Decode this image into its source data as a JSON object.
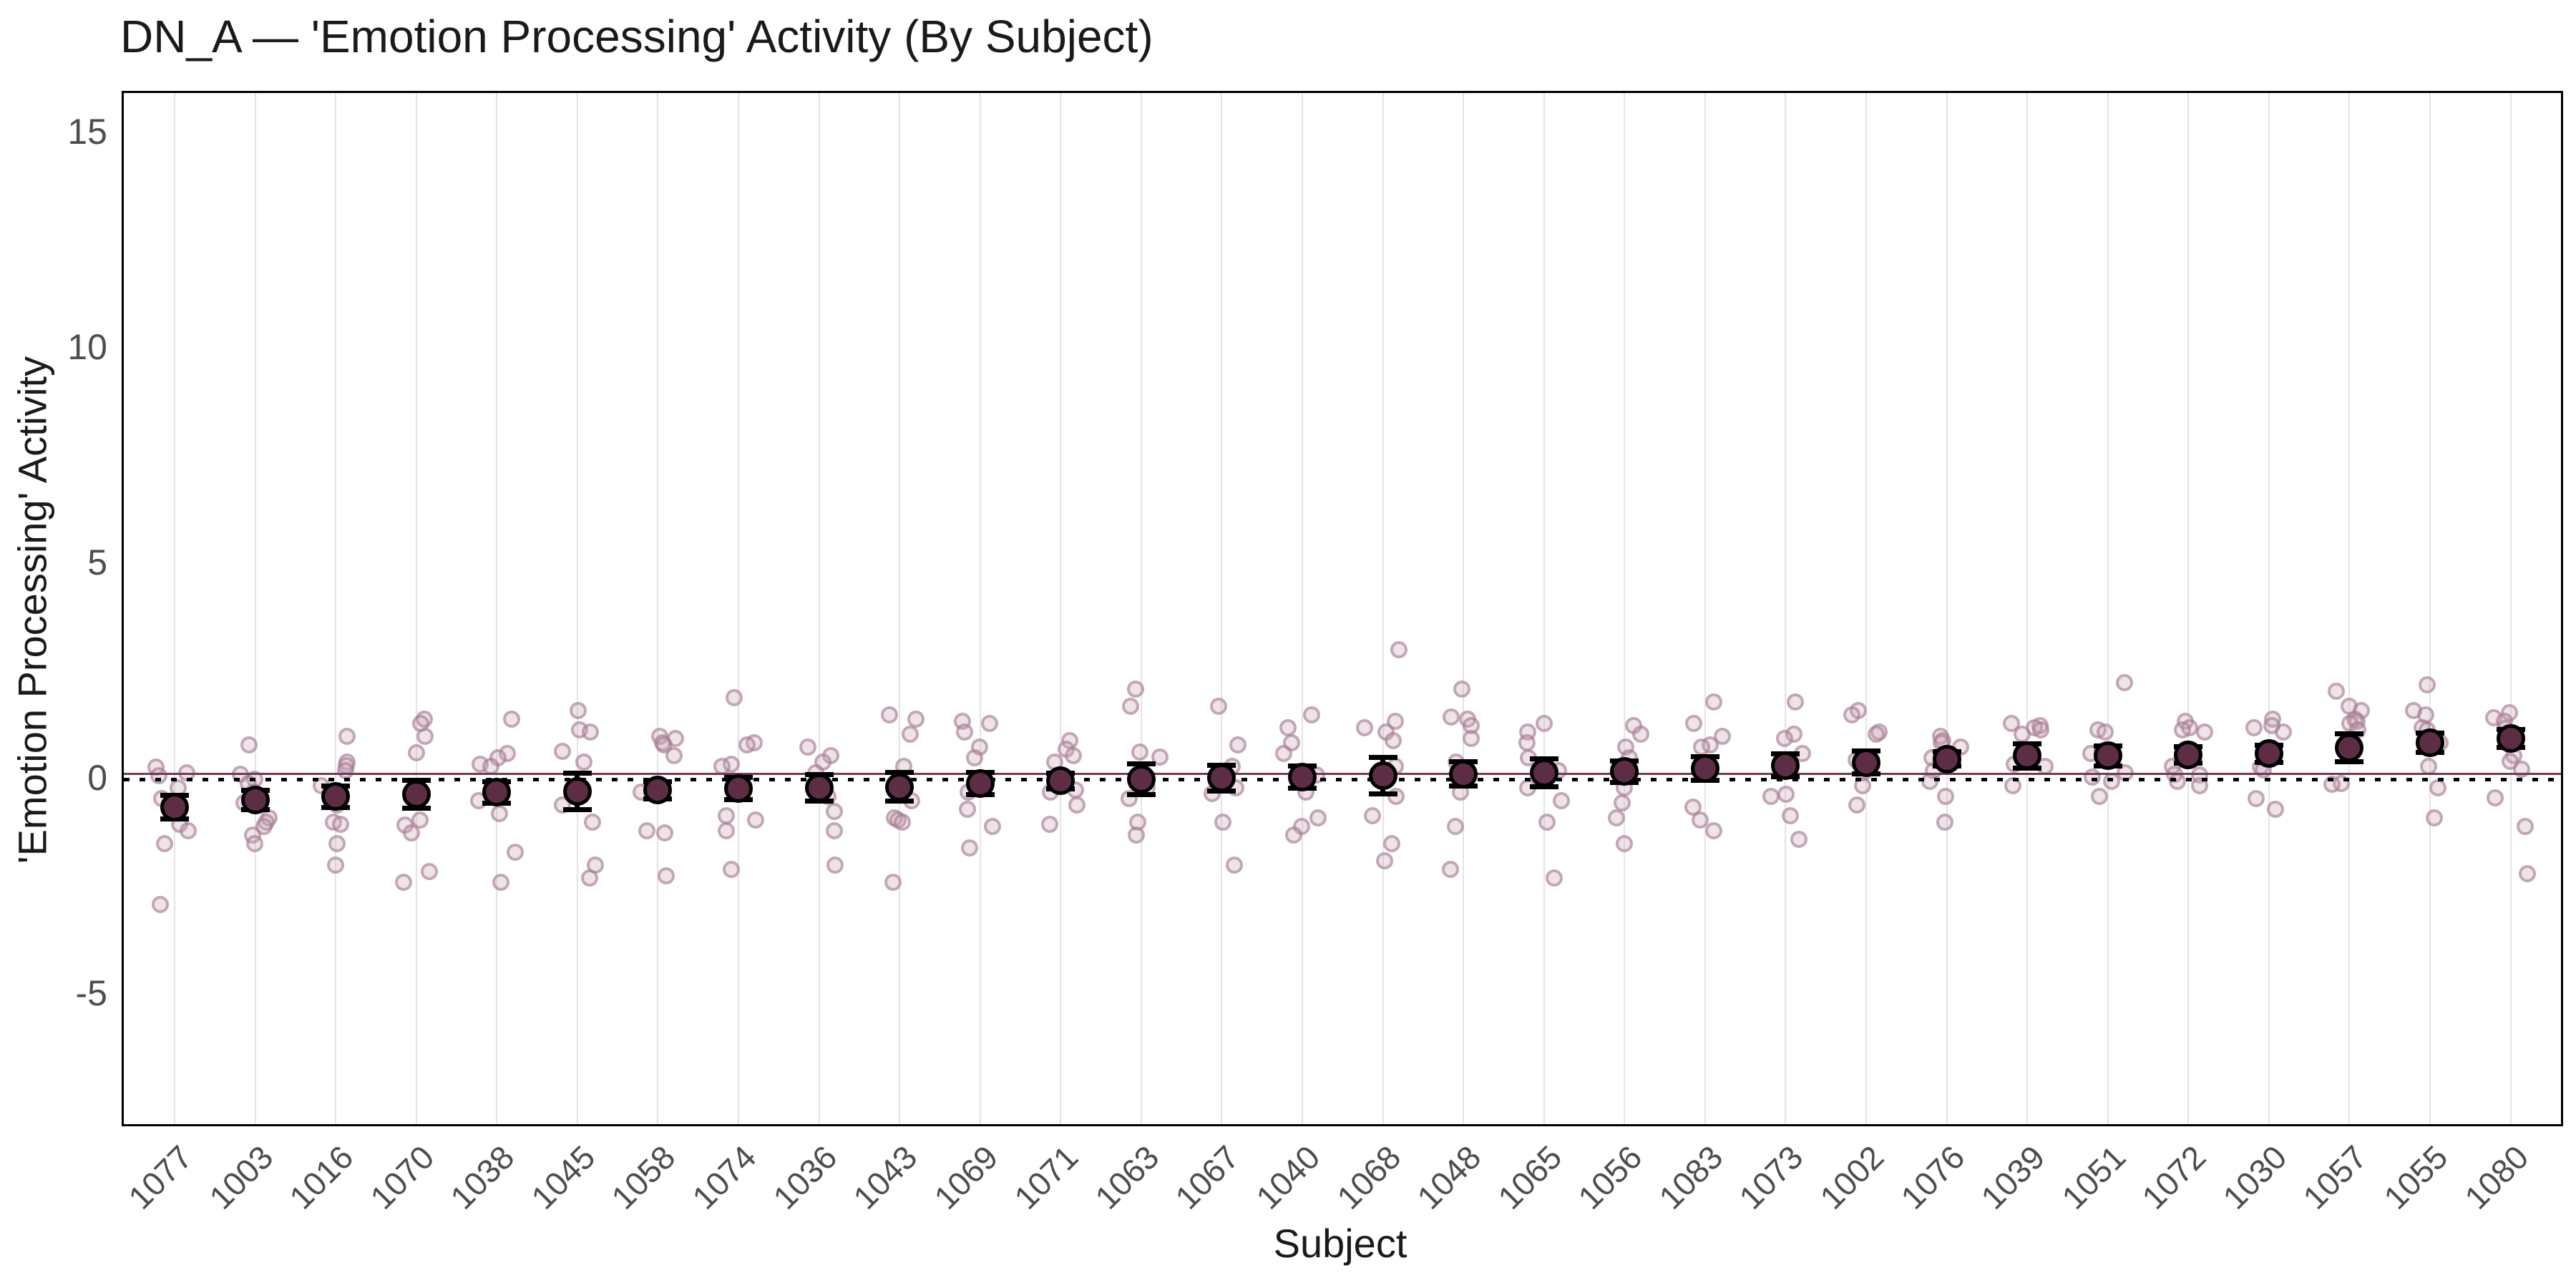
{
  "title": "DN_A — 'Emotion Processing' Activity (By Subject)",
  "axes": {
    "x_label": "Subject",
    "y_label": "'Emotion Processing' Activity",
    "y_ticks": [
      15,
      10,
      5,
      0,
      -5
    ],
    "y_range": [
      -8,
      16
    ]
  },
  "reference_lines": {
    "zero": {
      "y": 0,
      "style": "dotted",
      "color": "#000000"
    },
    "grand_mean": {
      "y": 0.13,
      "style": "solid",
      "color": "#6d3d57"
    }
  },
  "colors": {
    "mean_fill": "#5c2d45",
    "mean_stroke": "#000000",
    "error_bar": "#000000",
    "jitter_fill": "rgba(199,163,182,0.30)",
    "jitter_stroke": "rgba(158,116,139,0.55)",
    "gridline": "#e4e4e4",
    "panel_border": "#000000",
    "tick_text": "#4d4d4d",
    "title_text": "#1a1a1a"
  },
  "chart_data": {
    "type": "scatter",
    "title": "DN_A — 'Emotion Processing' Activity (By Subject)",
    "xlabel": "Subject",
    "ylabel": "'Emotion Processing' Activity",
    "ylim": [
      -8,
      16
    ],
    "grid": "vertical-only",
    "legend": "none",
    "description": "Per-subject mean activity (dark point ± SE error bar) with individual trial points jittered, subjects ordered by ascending mean; dotted line at 0, solid line at grand mean 0.13",
    "subjects": [
      {
        "id": "1077",
        "mean": -0.65,
        "se": 0.28,
        "points": [
          0.28,
          0.15,
          0.08,
          -0.2,
          -0.45,
          -1.05,
          -1.2,
          -1.5,
          -2.9
        ]
      },
      {
        "id": "1003",
        "mean": -0.48,
        "se": 0.22,
        "points": [
          0.8,
          0.12,
          0.0,
          -0.1,
          -0.3,
          -0.55,
          -0.9,
          -1.0,
          -1.1,
          -1.3,
          -1.5
        ]
      },
      {
        "id": "1016",
        "mean": -0.4,
        "se": 0.25,
        "points": [
          1.0,
          0.4,
          0.32,
          0.2,
          -0.15,
          -0.6,
          -1.0,
          -1.05,
          -1.5,
          -2.0
        ]
      },
      {
        "id": "1070",
        "mean": -0.35,
        "se": 0.33,
        "points": [
          1.4,
          1.3,
          1.0,
          0.62,
          -0.3,
          -0.95,
          -1.07,
          -1.25,
          -2.15,
          -2.4
        ]
      },
      {
        "id": "1038",
        "mean": -0.3,
        "se": 0.25,
        "points": [
          1.4,
          0.6,
          0.5,
          0.35,
          0.3,
          -0.5,
          -0.8,
          -1.7,
          -2.4
        ]
      },
      {
        "id": "1045",
        "mean": -0.28,
        "se": 0.42,
        "points": [
          1.6,
          1.15,
          1.1,
          0.65,
          0.4,
          -0.6,
          -1.0,
          -2.0,
          -2.3
        ]
      },
      {
        "id": "1058",
        "mean": -0.25,
        "se": 0.2,
        "points": [
          1.0,
          0.95,
          0.85,
          0.8,
          0.55,
          -0.3,
          -1.2,
          -1.25,
          -2.25
        ]
      },
      {
        "id": "1074",
        "mean": -0.22,
        "se": 0.26,
        "points": [
          1.9,
          0.85,
          0.8,
          0.35,
          0.3,
          -0.85,
          -0.95,
          -1.2,
          -2.1
        ]
      },
      {
        "id": "1036",
        "mean": -0.2,
        "se": 0.3,
        "points": [
          0.75,
          0.55,
          0.4,
          0.15,
          -0.4,
          -0.75,
          -1.2,
          -2.0
        ]
      },
      {
        "id": "1043",
        "mean": -0.18,
        "se": 0.33,
        "points": [
          1.5,
          1.4,
          1.05,
          0.3,
          -0.5,
          -0.9,
          -0.95,
          -1.0,
          -2.4
        ]
      },
      {
        "id": "1069",
        "mean": -0.1,
        "se": 0.25,
        "points": [
          1.35,
          1.3,
          1.1,
          0.75,
          0.5,
          -0.3,
          -0.7,
          -1.1,
          -1.6
        ]
      },
      {
        "id": "1071",
        "mean": -0.04,
        "se": 0.18,
        "points": [
          0.9,
          0.7,
          0.55,
          0.4,
          -0.25,
          -0.3,
          -0.6,
          -1.05
        ]
      },
      {
        "id": "1063",
        "mean": 0.0,
        "se": 0.36,
        "points": [
          2.1,
          1.7,
          0.63,
          0.51,
          -0.2,
          -0.45,
          -1.0,
          -1.3
        ]
      },
      {
        "id": "1067",
        "mean": 0.03,
        "se": 0.3,
        "points": [
          1.7,
          0.8,
          0.3,
          -0.2,
          -0.33,
          -1.0,
          -2.0
        ]
      },
      {
        "id": "1040",
        "mean": 0.05,
        "se": 0.26,
        "points": [
          1.5,
          1.2,
          0.85,
          0.6,
          0.1,
          -0.3,
          -0.9,
          -1.1,
          -1.3
        ]
      },
      {
        "id": "1068",
        "mean": 0.08,
        "se": 0.42,
        "points": [
          3.0,
          1.35,
          1.2,
          1.1,
          0.9,
          0.3,
          -0.4,
          -0.85,
          -1.5,
          -1.9
        ]
      },
      {
        "id": "1048",
        "mean": 0.12,
        "se": 0.28,
        "points": [
          2.1,
          1.45,
          1.4,
          1.25,
          0.95,
          0.4,
          -0.3,
          -1.1,
          -2.1
        ]
      },
      {
        "id": "1065",
        "mean": 0.15,
        "se": 0.32,
        "points": [
          1.3,
          1.1,
          0.85,
          0.5,
          0.2,
          -0.2,
          -0.5,
          -1.0,
          -2.3
        ]
      },
      {
        "id": "1056",
        "mean": 0.18,
        "se": 0.25,
        "points": [
          1.25,
          1.05,
          0.75,
          0.5,
          0.25,
          -0.2,
          -0.55,
          -0.9,
          -1.5
        ]
      },
      {
        "id": "1083",
        "mean": 0.25,
        "se": 0.27,
        "points": [
          1.8,
          1.3,
          1.0,
          0.8,
          0.75,
          -0.65,
          -0.95,
          -1.2
        ]
      },
      {
        "id": "1073",
        "mean": 0.32,
        "se": 0.27,
        "points": [
          1.8,
          1.05,
          0.95,
          0.6,
          -0.35,
          -0.4,
          -0.85,
          -1.4
        ]
      },
      {
        "id": "1002",
        "mean": 0.39,
        "se": 0.26,
        "points": [
          1.6,
          1.5,
          1.1,
          1.05,
          0.45,
          0.15,
          -0.15,
          -0.6
        ]
      },
      {
        "id": "1076",
        "mean": 0.47,
        "se": 0.17,
        "points": [
          1.0,
          0.9,
          0.85,
          0.75,
          0.5,
          0.2,
          -0.05,
          -0.4,
          -1.0
        ]
      },
      {
        "id": "1039",
        "mean": 0.54,
        "se": 0.28,
        "points": [
          1.3,
          1.25,
          1.2,
          1.15,
          1.05,
          0.4,
          0.35,
          0.3,
          -0.15
        ]
      },
      {
        "id": "1051",
        "mean": 0.54,
        "se": 0.24,
        "points": [
          2.25,
          1.15,
          1.1,
          0.65,
          0.6,
          0.15,
          0.05,
          -0.05,
          -0.4
        ]
      },
      {
        "id": "1072",
        "mean": 0.57,
        "se": 0.19,
        "points": [
          1.35,
          1.2,
          1.15,
          1.1,
          0.3,
          0.12,
          0.1,
          -0.05,
          -0.15
        ]
      },
      {
        "id": "1030",
        "mean": 0.59,
        "se": 0.2,
        "points": [
          1.4,
          1.25,
          1.2,
          1.1,
          0.28,
          0.22,
          -0.45,
          -0.7
        ]
      },
      {
        "id": "1057",
        "mean": 0.73,
        "se": 0.33,
        "points": [
          2.05,
          1.7,
          1.6,
          1.4,
          1.35,
          1.3,
          1.15,
          -0.1,
          -0.12
        ]
      },
      {
        "id": "1055",
        "mean": 0.85,
        "se": 0.22,
        "points": [
          2.2,
          1.6,
          1.5,
          1.2,
          1.15,
          0.85,
          0.3,
          -0.2,
          -0.9
        ]
      },
      {
        "id": "1080",
        "mean": 0.95,
        "se": 0.21,
        "points": [
          1.55,
          1.43,
          1.35,
          1.18,
          0.54,
          0.42,
          0.24,
          -0.44,
          -1.1,
          -2.2
        ]
      }
    ]
  }
}
